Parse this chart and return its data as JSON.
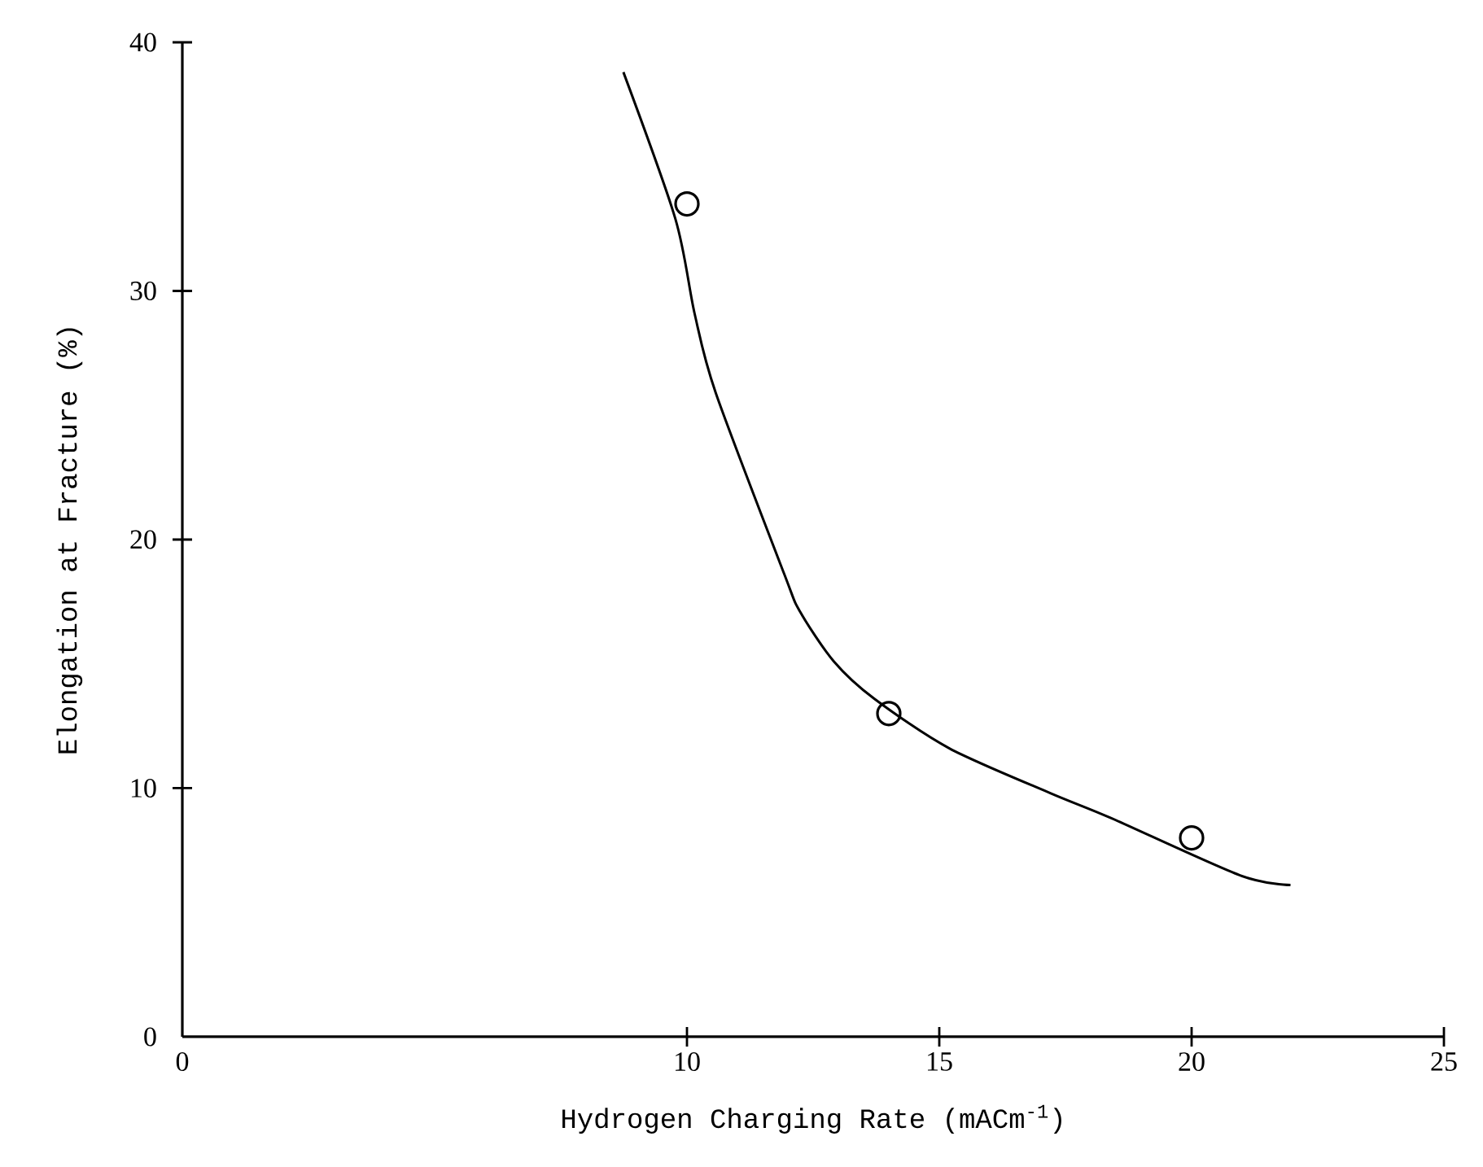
{
  "chart_data": {
    "type": "line",
    "xlabel": "Hydrogen Charging Rate (mACm$^{-1}$)",
    "ylabel": "Elongation at Fracture (%)",
    "xlim": [
      0,
      25
    ],
    "xticks": [
      0,
      10,
      15,
      20,
      25
    ],
    "ylim": [
      0,
      40
    ],
    "yticks": [
      0,
      10,
      20,
      30,
      40
    ],
    "grid": false,
    "series": [
      {
        "type": "scatter",
        "marker": "circle",
        "color": "#000000",
        "x": [
          10,
          14,
          20
        ],
        "values": [
          33.5,
          13.0,
          8.0
        ]
      },
      {
        "marker": "none",
        "line_style": "solid",
        "color": "#000000",
        "x": [
          8.74,
          9.77,
          10.15,
          10.57,
          11.93,
          12.24,
          12.91,
          13.71,
          15.2,
          17.2,
          18.4,
          20.95,
          21.96
        ],
        "values": [
          38.8,
          32.9,
          29.1,
          25.9,
          18.6,
          17.1,
          15.1,
          13.6,
          11.6,
          9.8,
          8.8,
          6.5,
          6.1
        ]
      }
    ]
  }
}
